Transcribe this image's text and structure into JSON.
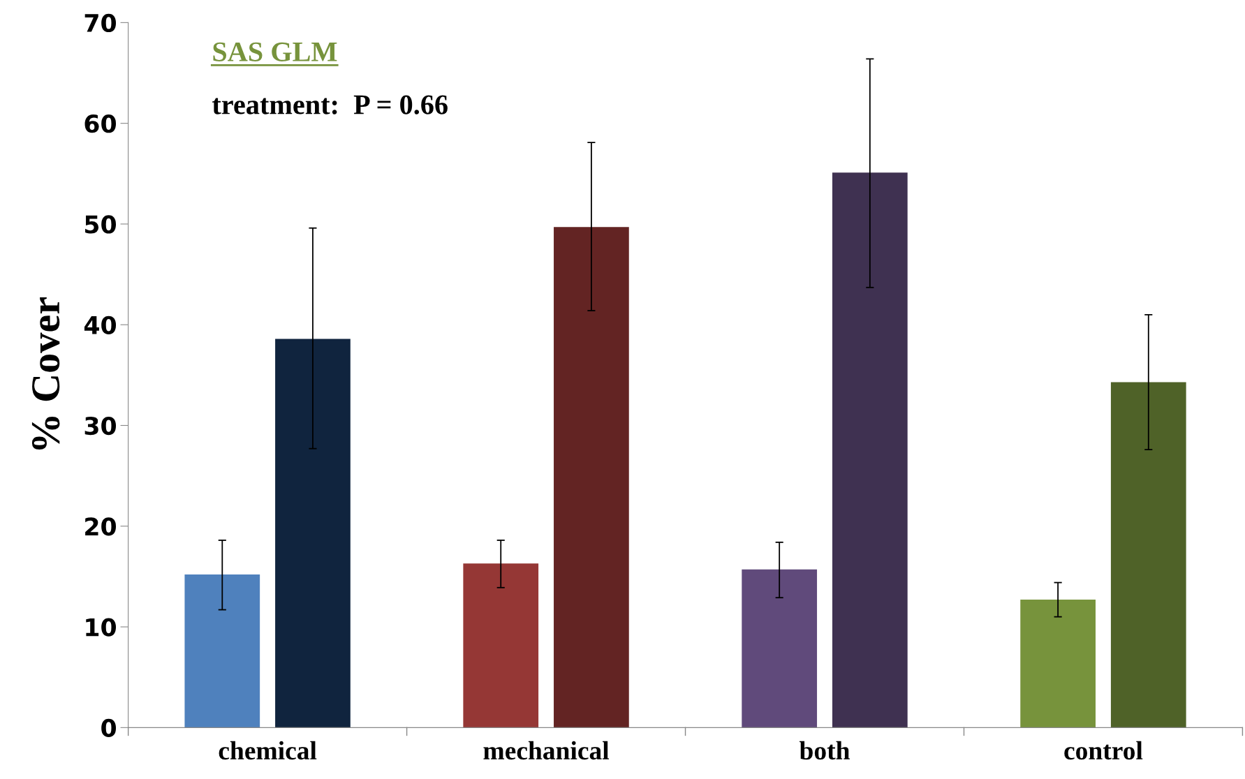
{
  "chart_data": {
    "type": "bar",
    "ylabel": "% Cover",
    "categories": [
      "chemical",
      "mechanical",
      "both",
      "control"
    ],
    "series": [
      {
        "colors": [
          "#4f81bd",
          "#953735",
          "#604a7b",
          "#77933c"
        ],
        "values": [
          15.2,
          16.3,
          15.7,
          12.7
        ],
        "errors": [
          [
            11.7,
            18.6
          ],
          [
            13.9,
            18.6
          ],
          [
            12.9,
            18.4
          ],
          [
            11.0,
            14.4
          ]
        ]
      },
      {
        "colors": [
          "#10243e",
          "#632423",
          "#3f3151",
          "#4f6228"
        ],
        "values": [
          38.6,
          49.7,
          55.1,
          34.3
        ],
        "errors": [
          [
            27.7,
            49.6
          ],
          [
            41.4,
            58.1
          ],
          [
            43.7,
            66.4
          ],
          [
            27.6,
            41.0
          ]
        ]
      }
    ],
    "ylim": [
      0,
      70
    ],
    "yticks": [
      0,
      10,
      20,
      30,
      40,
      50,
      60,
      70
    ],
    "grid": false,
    "legend": false,
    "annotations": [
      "SAS GLM",
      "treatment:  P = 0.66"
    ]
  }
}
